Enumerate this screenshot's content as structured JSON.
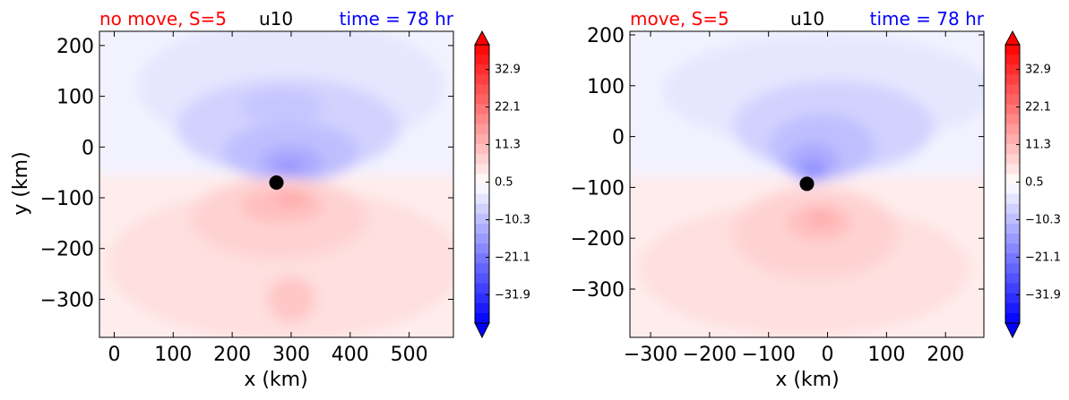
{
  "chart_data": [
    {
      "type": "heatmap",
      "title_left": "no move, S=5",
      "title_center": "u10",
      "title_right": "time = 78 hr",
      "xlabel": "x (km)",
      "ylabel": "y (km)",
      "xlim": [
        -25,
        575
      ],
      "ylim": [
        -375,
        228
      ],
      "xticks": [
        "0",
        "100",
        "200",
        "300",
        "400",
        "500"
      ],
      "xtick_values": [
        0,
        100,
        200,
        300,
        400,
        500
      ],
      "yticks": [
        "200",
        "100",
        "0",
        "−100",
        "−200",
        "−300"
      ],
      "ytick_values": [
        200,
        100,
        0,
        -100,
        -200,
        -300
      ],
      "center_marker": {
        "x": 275,
        "y": -70
      },
      "colorbar": {
        "ticks": [
          "32.9",
          "22.1",
          "11.3",
          "0.5",
          "−10.3",
          "−21.1",
          "−31.9"
        ],
        "tick_values": [
          32.9,
          22.1,
          11.3,
          0.5,
          -10.3,
          -21.1,
          -31.9
        ],
        "range": [
          -40,
          40
        ],
        "extend": "both"
      },
      "features": [
        {
          "shape": "ellipse",
          "cx": 300,
          "cy": 120,
          "rx": 260,
          "ry": 130,
          "value": -4
        },
        {
          "shape": "ellipse",
          "cx": 295,
          "cy": 40,
          "rx": 190,
          "ry": 95,
          "value": -7
        },
        {
          "shape": "ellipse",
          "cx": 285,
          "cy": 80,
          "rx": 70,
          "ry": 35,
          "value": -9
        },
        {
          "shape": "ellipse",
          "cx": 300,
          "cy": -10,
          "rx": 115,
          "ry": 60,
          "value": -10
        },
        {
          "shape": "ellipse",
          "cx": 300,
          "cy": -30,
          "rx": 55,
          "ry": 35,
          "value": -13
        },
        {
          "shape": "ellipse",
          "cx": 295,
          "cy": -40,
          "rx": 25,
          "ry": 18,
          "value": -16
        },
        {
          "shape": "ellipse",
          "cx": 290,
          "cy": -230,
          "rx": 300,
          "ry": 150,
          "value": 5
        },
        {
          "shape": "ellipse",
          "cx": 280,
          "cy": -140,
          "rx": 150,
          "ry": 80,
          "value": 7
        },
        {
          "shape": "ellipse",
          "cx": 285,
          "cy": -115,
          "rx": 70,
          "ry": 35,
          "value": 10
        },
        {
          "shape": "ellipse",
          "cx": 300,
          "cy": -100,
          "rx": 30,
          "ry": 16,
          "value": 13
        },
        {
          "shape": "ellipse",
          "cx": 300,
          "cy": -300,
          "rx": 40,
          "ry": 45,
          "value": 9
        }
      ]
    },
    {
      "type": "heatmap",
      "title_left": "move, S=5",
      "title_center": "u10",
      "title_right": "time = 78 hr",
      "xlabel": "x (km)",
      "ylabel": "",
      "xlim": [
        -335,
        265
      ],
      "ylim": [
        -395,
        207
      ],
      "xticks": [
        "−300",
        "−200",
        "−100",
        "0",
        "100",
        "200"
      ],
      "xtick_values": [
        -300,
        -200,
        -100,
        0,
        100,
        200
      ],
      "yticks": [
        "200",
        "100",
        "0",
        "−100",
        "−200",
        "−300"
      ],
      "ytick_values": [
        200,
        100,
        0,
        -100,
        -200,
        -300
      ],
      "center_marker": {
        "x": -35,
        "y": -93
      },
      "colorbar": {
        "ticks": [
          "32.9",
          "22.1",
          "11.3",
          "0.5",
          "−10.3",
          "−21.1",
          "−31.9"
        ],
        "tick_values": [
          32.9,
          22.1,
          11.3,
          0.5,
          -10.3,
          -21.1,
          -31.9
        ],
        "range": [
          -40,
          40
        ],
        "extend": "both"
      },
      "features": [
        {
          "shape": "ellipse",
          "cx": 0,
          "cy": 90,
          "rx": 280,
          "ry": 110,
          "value": -4
        },
        {
          "shape": "ellipse",
          "cx": 10,
          "cy": 20,
          "rx": 170,
          "ry": 90,
          "value": -7
        },
        {
          "shape": "ellipse",
          "cx": -10,
          "cy": -20,
          "rx": 90,
          "ry": 65,
          "value": -10
        },
        {
          "shape": "ellipse",
          "cx": -25,
          "cy": -50,
          "rx": 45,
          "ry": 40,
          "value": -13
        },
        {
          "shape": "ellipse",
          "cx": -25,
          "cy": -65,
          "rx": 22,
          "ry": 20,
          "value": -17
        },
        {
          "shape": "ellipse",
          "cx": -40,
          "cy": -260,
          "rx": 280,
          "ry": 130,
          "value": 5
        },
        {
          "shape": "ellipse",
          "cx": -20,
          "cy": -190,
          "rx": 140,
          "ry": 90,
          "value": 7
        },
        {
          "shape": "ellipse",
          "cx": -15,
          "cy": -170,
          "rx": 55,
          "ry": 35,
          "value": 10
        },
        {
          "shape": "ellipse",
          "cx": -10,
          "cy": -160,
          "rx": 25,
          "ry": 16,
          "value": 13
        }
      ]
    }
  ]
}
